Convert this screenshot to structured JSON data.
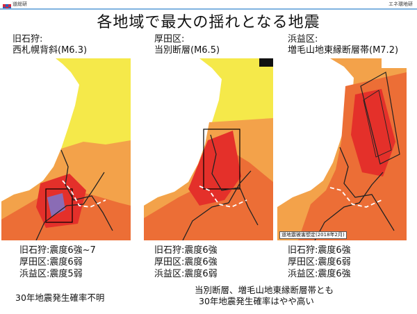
{
  "header": {
    "logo_text": "道総研",
    "right_label": "エネ環地研"
  },
  "title": "各地域で最大の揺れとなる地震",
  "panels": [
    {
      "region": "旧石狩:",
      "fault": "西札幌背斜(M6.3)",
      "intensities": [
        "旧石狩:震度6強~7",
        "厚田区:震度6弱",
        "浜益区:震度5弱"
      ]
    },
    {
      "region": "厚田区:",
      "fault": "当別断層(M6.5)",
      "intensities": [
        "旧石狩:震度6強",
        "厚田区:震度6強",
        "浜益区:震度6弱"
      ]
    },
    {
      "region": "浜益区:",
      "fault": "増毛山地東縁断層帯(M7.2)",
      "caption": "道地震被害想定(2018年2月)",
      "intensities": [
        "旧石狩:震度6強",
        "厚田区:震度6弱",
        "浜益区:震度6強"
      ]
    }
  ],
  "notes": {
    "left": "30年地震発生確率不明",
    "right_line1": "当別断層、増毛山地東縁断層帯とも",
    "right_line2": "30年地震発生確率はやや高い"
  }
}
